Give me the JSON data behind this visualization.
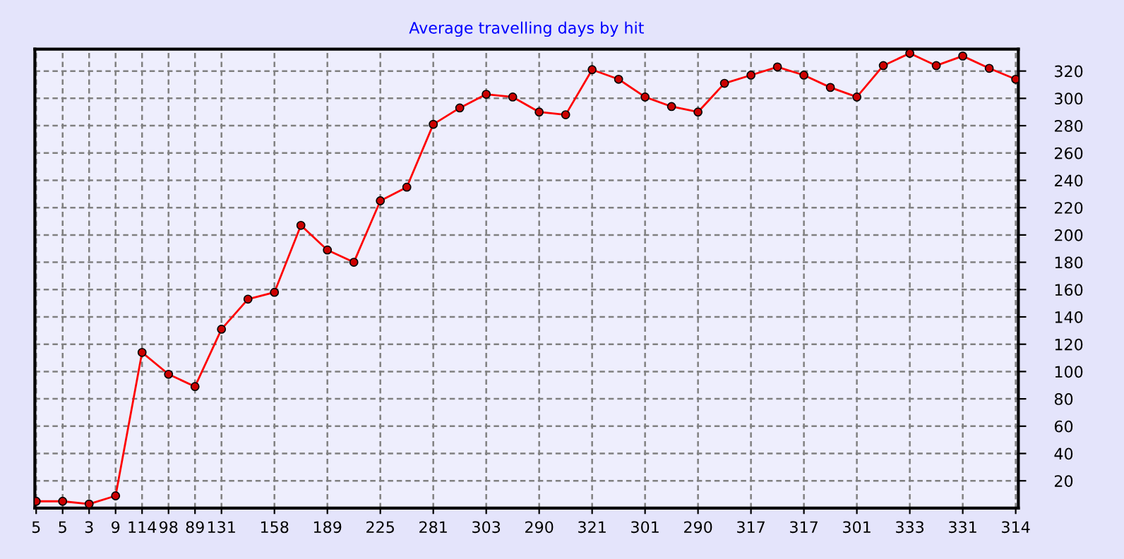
{
  "chart_data": {
    "type": "line",
    "title": "Average travelling days by hit",
    "categories": [
      "5",
      "5",
      "3",
      "9",
      "114",
      "98",
      "89",
      "131",
      null,
      "158",
      null,
      "189",
      null,
      "225",
      null,
      "281",
      null,
      "303",
      null,
      "290",
      null,
      "321",
      null,
      "301",
      null,
      "290",
      null,
      "317",
      null,
      "317",
      null,
      "301",
      null,
      "333",
      null,
      "331",
      null,
      "314"
    ],
    "series": [
      {
        "color": "#ff0000",
        "values": [
          5,
          5,
          3,
          9,
          114,
          98,
          89,
          131,
          153,
          158,
          207,
          189,
          180,
          225,
          235,
          281,
          293,
          303,
          301,
          290,
          288,
          321,
          314,
          301,
          294,
          290,
          311,
          317,
          323,
          317,
          308,
          301,
          324,
          333,
          324,
          331,
          322,
          314
        ]
      }
    ],
    "ylim": [
      0,
      336
    ],
    "yticks": [
      20,
      40,
      60,
      80,
      100,
      120,
      140,
      160,
      180,
      200,
      220,
      240,
      260,
      280,
      300,
      320
    ],
    "grid": true,
    "marker": "circle",
    "line_style": "solid"
  }
}
